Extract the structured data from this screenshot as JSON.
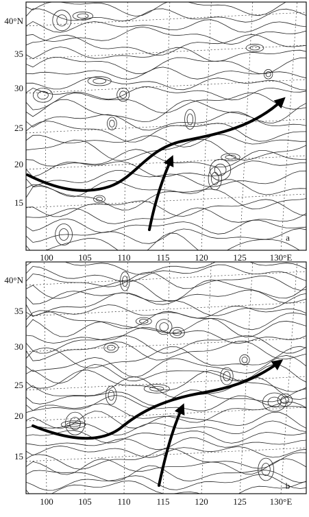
{
  "panels": [
    {
      "label": "a",
      "lat_labels": [
        "40°N",
        "35",
        "30",
        "25",
        "20",
        "15"
      ],
      "lon_labels": [
        "100",
        "105",
        "110",
        "115",
        "120",
        "125",
        "130°E"
      ]
    },
    {
      "label": "b",
      "lat_labels": [
        "40°N",
        "35",
        "30",
        "25",
        "20",
        "15"
      ],
      "lon_labels": [
        "100",
        "105",
        "110",
        "115",
        "120",
        "125",
        "130°E"
      ]
    }
  ]
}
